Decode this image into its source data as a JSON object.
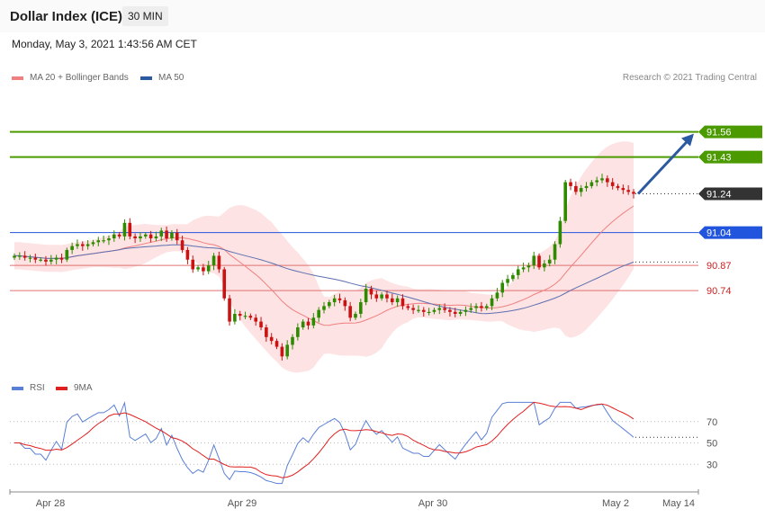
{
  "header": {
    "title": "Dollar Index (ICE)",
    "interval": "30 MIN",
    "datetime": "Monday, May 3, 2021 1:43:56 AM CET"
  },
  "legend_main": [
    {
      "label": "MA 20 + Bollinger Bands",
      "color": "#f08080"
    },
    {
      "label": "MA 50",
      "color": "#2c5aa0"
    }
  ],
  "legend_rsi": [
    {
      "label": "RSI",
      "color": "#5a7fd6"
    },
    {
      "label": "9MA",
      "color": "#e02020"
    }
  ],
  "copyright": "Research © 2021 Trading Central",
  "colors": {
    "up": "#2e8b00",
    "down": "#cc1111",
    "band": "#fde3e3",
    "resistance": "#4a9a00",
    "support": "#e07070",
    "pivot": "#2255dd",
    "current": "#333333",
    "arrow": "#2c5aa0"
  },
  "chart_data": [
    {
      "type": "candlestick",
      "x_ticks": [
        "Apr 28",
        "Apr 29",
        "Apr 30",
        "May 2",
        "May 14"
      ],
      "ylim": [
        90.29,
        91.8
      ],
      "levels": [
        {
          "value": 91.56,
          "label": "91.56",
          "kind": "resistance"
        },
        {
          "value": 91.43,
          "label": "91.43",
          "kind": "resistance"
        },
        {
          "value": 91.24,
          "label": "91.24",
          "kind": "current"
        },
        {
          "value": 91.04,
          "label": "91.04",
          "kind": "pivot"
        },
        {
          "value": 90.87,
          "label": "90.87",
          "kind": "support"
        },
        {
          "value": 90.74,
          "label": "90.74",
          "kind": "support"
        }
      ],
      "arrow": {
        "from": 91.24,
        "to": 91.56
      },
      "close_series": [
        90.92,
        90.92,
        90.91,
        90.91,
        90.9,
        90.9,
        90.89,
        90.9,
        90.91,
        90.9,
        90.95,
        90.97,
        90.98,
        90.97,
        90.98,
        90.99,
        91.0,
        91.0,
        91.01,
        91.03,
        91.02,
        91.09,
        91.02,
        91.01,
        91.02,
        91.03,
        91.01,
        91.02,
        91.05,
        91.01,
        91.04,
        91.0,
        90.95,
        90.9,
        90.85,
        90.86,
        90.84,
        90.87,
        90.92,
        90.85,
        90.7,
        90.58,
        90.62,
        90.61,
        90.61,
        90.6,
        90.58,
        90.55,
        90.5,
        90.48,
        90.45,
        90.4,
        90.46,
        90.5,
        90.55,
        90.58,
        90.56,
        90.6,
        90.64,
        90.66,
        90.68,
        90.7,
        90.69,
        90.66,
        90.6,
        90.62,
        90.68,
        90.75,
        90.72,
        90.7,
        90.72,
        90.7,
        90.68,
        90.7,
        90.66,
        90.65,
        90.64,
        90.64,
        90.63,
        90.63,
        90.64,
        90.65,
        90.64,
        90.63,
        90.62,
        90.63,
        90.64,
        90.65,
        90.66,
        90.65,
        90.66,
        90.7,
        90.73,
        90.78,
        90.8,
        90.82,
        90.85,
        90.86,
        90.87,
        90.92,
        90.86,
        90.88,
        90.9,
        90.98,
        91.1,
        91.3,
        91.28,
        91.25,
        91.27,
        91.28,
        91.3,
        91.31,
        91.32,
        91.3,
        91.28,
        91.27,
        91.26,
        91.25,
        91.24
      ]
    },
    {
      "type": "line",
      "ylabel": "",
      "y_ticks": [
        70,
        50,
        30
      ],
      "ylim": [
        10,
        90
      ]
    }
  ]
}
